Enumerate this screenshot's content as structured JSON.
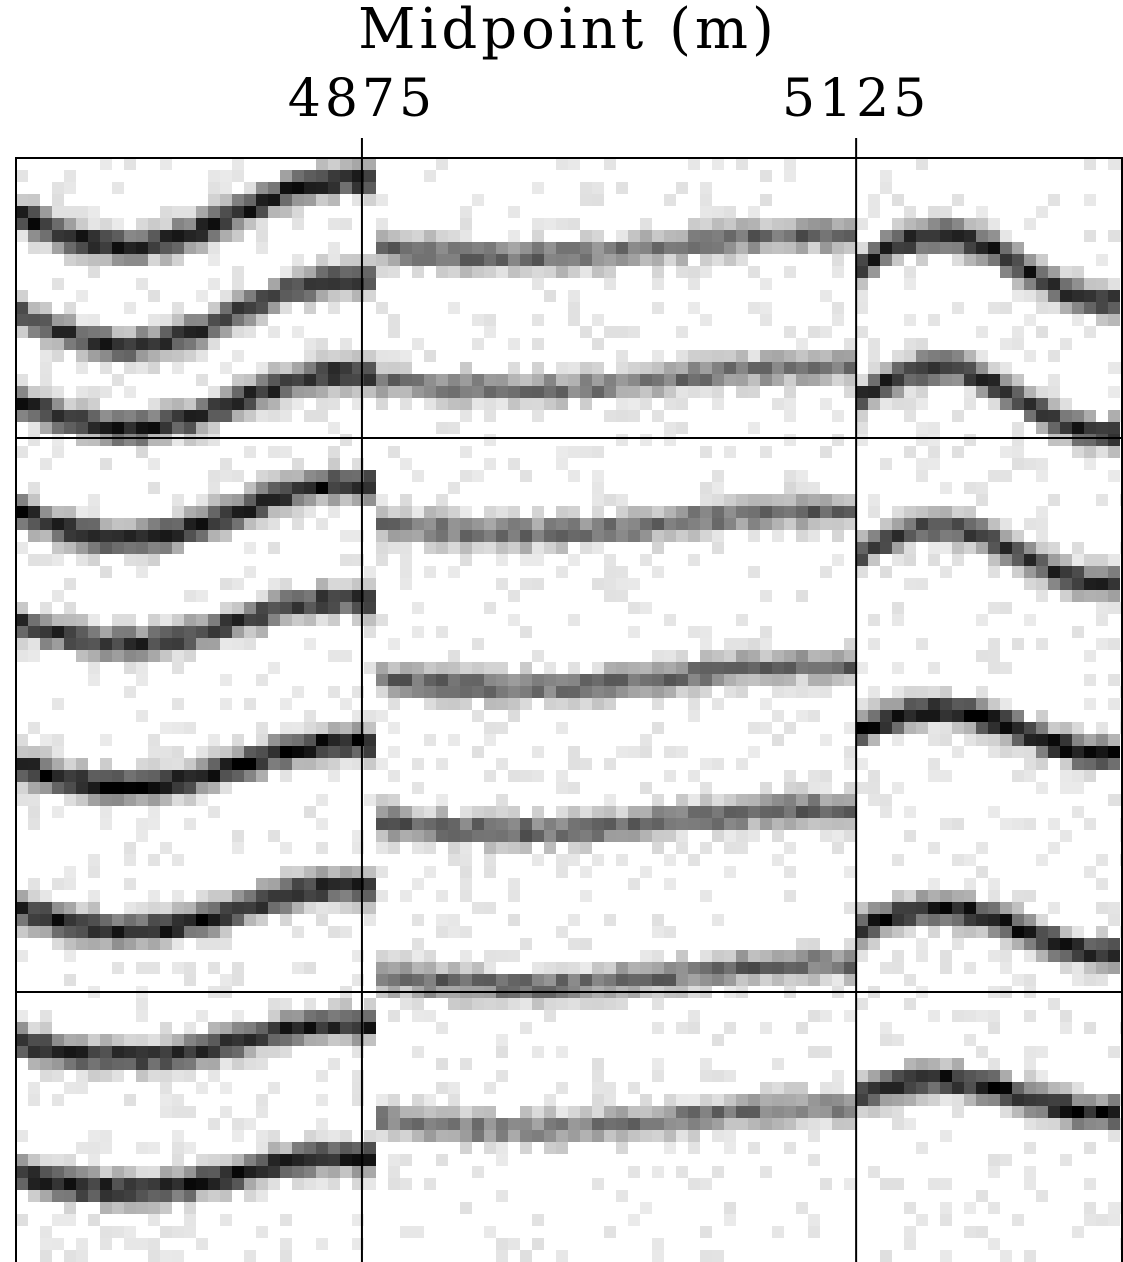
{
  "chart_data": {
    "type": "heatmap",
    "title": "",
    "xlabel": "Midpoint (m)",
    "ylabel": "",
    "x_ticks": [
      4875,
      5125
    ],
    "x_tick_labels": [
      "4875",
      "5125"
    ],
    "colormap": "grayscale",
    "grid": true,
    "description_free": true,
    "events": [
      {
        "start": 4700,
        "end": 4880,
        "c": 0.05,
        "a": 0.03,
        "strength": 0.9
      },
      {
        "start": 4700,
        "end": 4880,
        "c": 0.14,
        "a": 0.03,
        "strength": 0.8
      },
      {
        "start": 4700,
        "end": 4880,
        "c": 0.22,
        "a": 0.025,
        "strength": 0.85
      },
      {
        "start": 4700,
        "end": 4880,
        "c": 0.32,
        "a": 0.025,
        "strength": 0.9
      },
      {
        "start": 4700,
        "end": 4880,
        "c": 0.42,
        "a": 0.02,
        "strength": 0.8
      },
      {
        "start": 4700,
        "end": 4880,
        "c": 0.55,
        "a": 0.02,
        "strength": 0.95
      },
      {
        "start": 4700,
        "end": 4880,
        "c": 0.68,
        "a": 0.02,
        "strength": 0.9
      },
      {
        "start": 4700,
        "end": 4880,
        "c": 0.8,
        "a": 0.015,
        "strength": 0.85
      },
      {
        "start": 4700,
        "end": 4880,
        "c": 0.92,
        "a": 0.015,
        "strength": 0.9
      },
      {
        "start": 4880,
        "end": 5125,
        "c": 0.08,
        "a": 0.01,
        "strength": 0.6
      },
      {
        "start": 4880,
        "end": 5125,
        "c": 0.2,
        "a": 0.01,
        "strength": 0.55
      },
      {
        "start": 4880,
        "end": 5125,
        "c": 0.33,
        "a": 0.01,
        "strength": 0.6
      },
      {
        "start": 4880,
        "end": 5125,
        "c": 0.47,
        "a": 0.01,
        "strength": 0.6
      },
      {
        "start": 4880,
        "end": 5125,
        "c": 0.6,
        "a": 0.01,
        "strength": 0.65
      },
      {
        "start": 4880,
        "end": 5125,
        "c": 0.74,
        "a": 0.01,
        "strength": 0.6
      },
      {
        "start": 4880,
        "end": 5125,
        "c": 0.87,
        "a": 0.01,
        "strength": 0.55
      },
      {
        "start": 5125,
        "end": 5260,
        "c": 0.1,
        "a": -0.03,
        "strength": 0.9
      },
      {
        "start": 5125,
        "end": 5260,
        "c": 0.22,
        "a": -0.03,
        "strength": 0.85
      },
      {
        "start": 5125,
        "end": 5260,
        "c": 0.36,
        "a": -0.025,
        "strength": 0.8
      },
      {
        "start": 5125,
        "end": 5260,
        "c": 0.52,
        "a": -0.02,
        "strength": 0.95
      },
      {
        "start": 5125,
        "end": 5260,
        "c": 0.7,
        "a": -0.02,
        "strength": 0.9
      },
      {
        "start": 5125,
        "end": 5260,
        "c": 0.85,
        "a": -0.015,
        "strength": 0.9
      }
    ]
  }
}
